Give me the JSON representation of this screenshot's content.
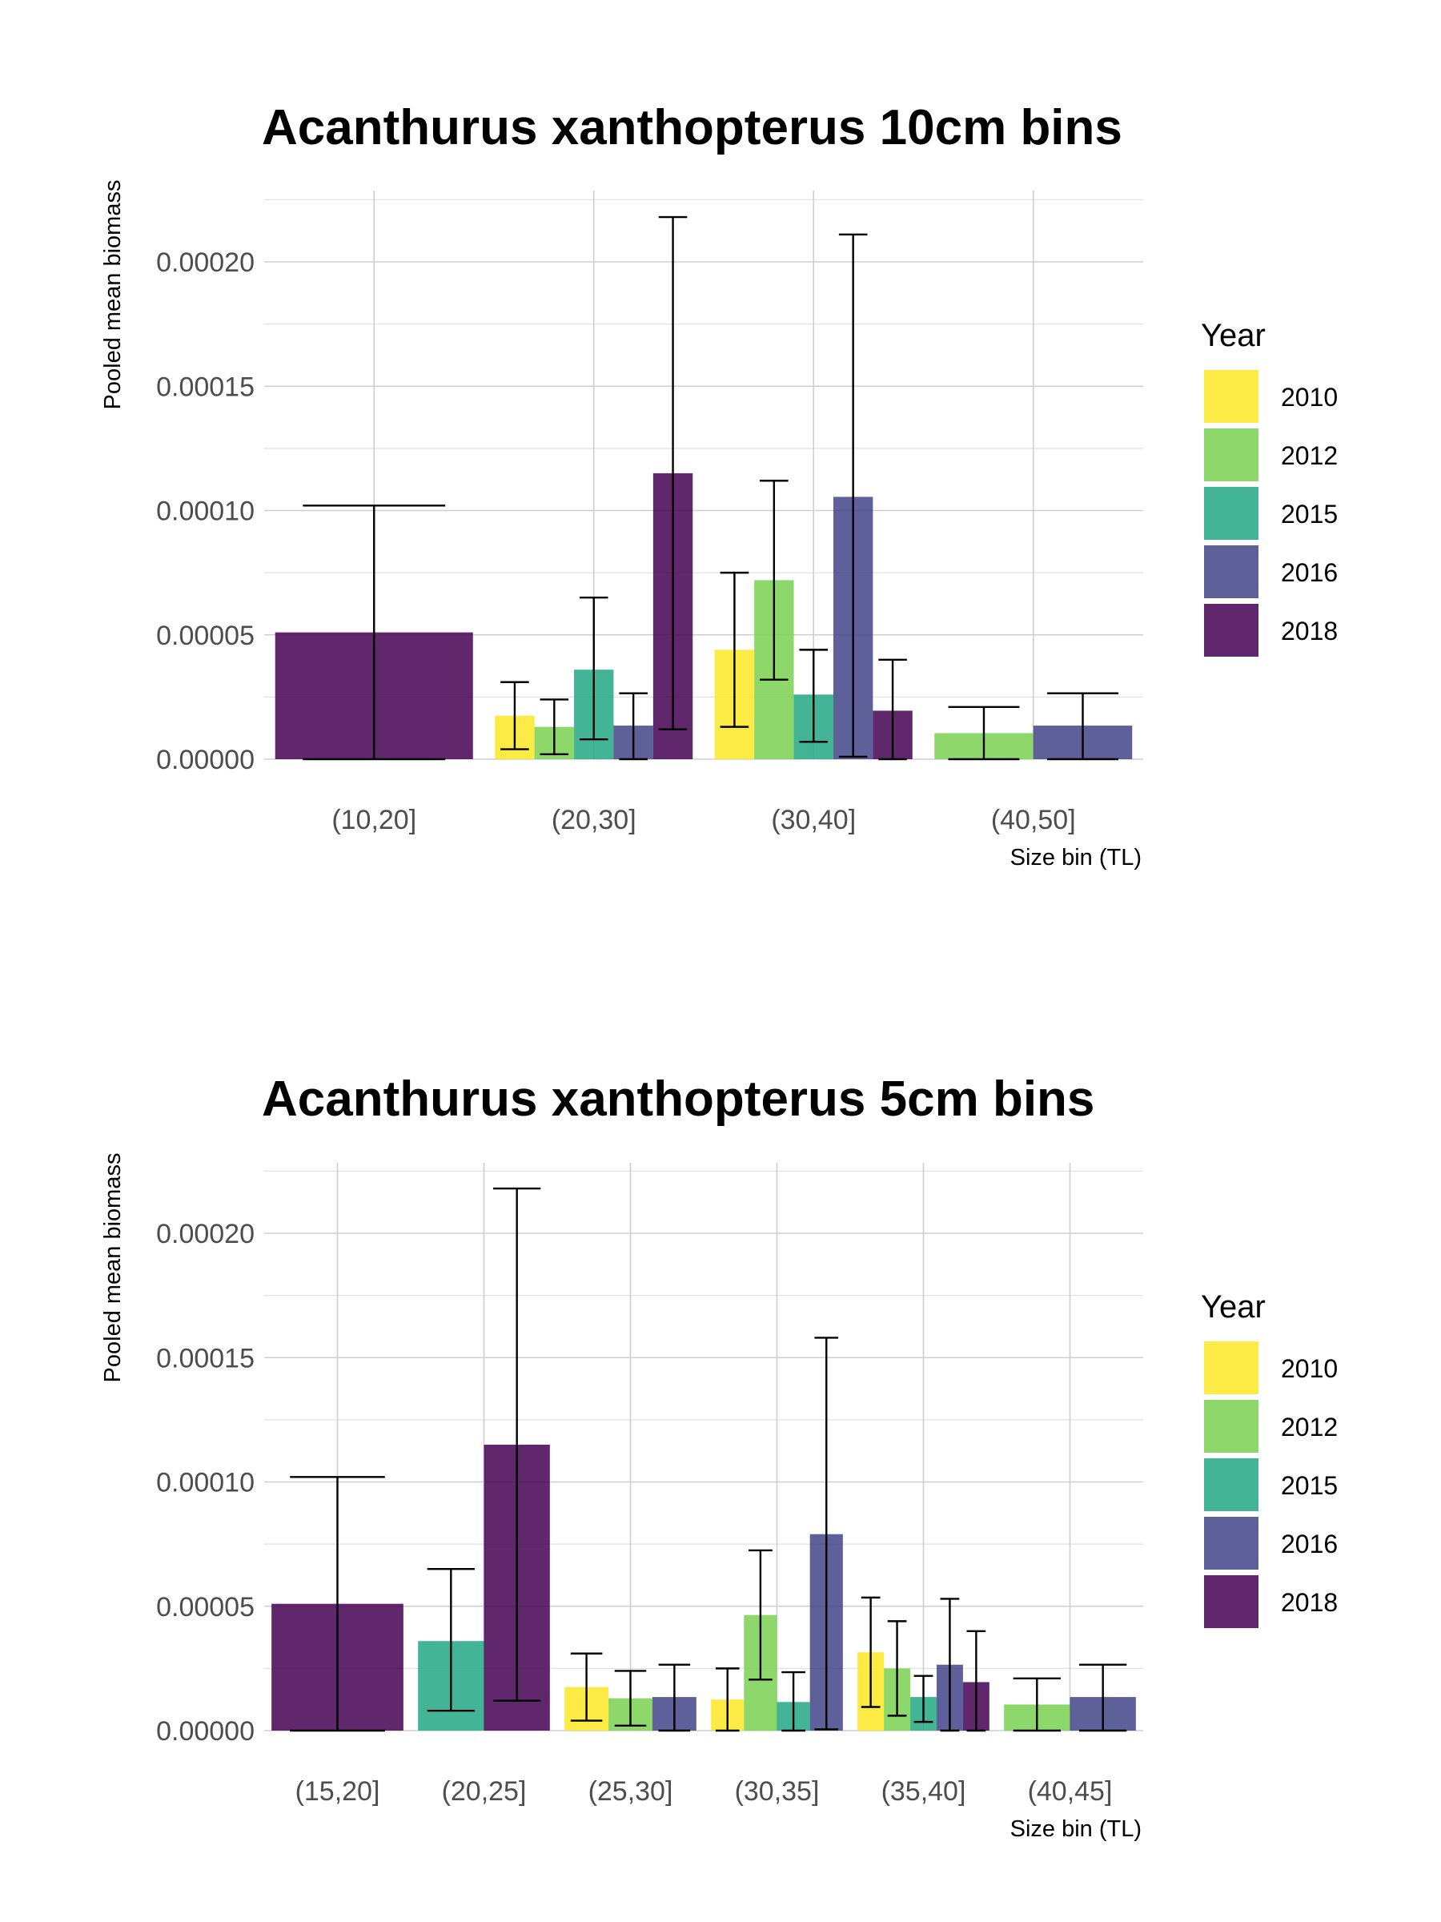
{
  "chart_data": [
    {
      "type": "bar",
      "title": "Acanthurus xanthopterus 10cm bins",
      "xlabel": "Size bin (TL)",
      "ylabel": "Pooled mean biomass",
      "ylim": [
        0,
        0.00023
      ],
      "yticks": [
        "0.00000",
        "0.00005",
        "0.00010",
        "0.00015",
        "0.00020"
      ],
      "ytick_values": [
        0,
        5e-05,
        0.0001,
        0.00015,
        0.0002
      ],
      "categories": [
        "(10,20]",
        "(20,30]",
        "(30,40]",
        "(40,50]"
      ],
      "legend": {
        "title": "Year",
        "position": "right"
      },
      "grid": true,
      "series": [
        {
          "name": "2010",
          "color": "#FDE725",
          "values": [
            null,
            1.75e-05,
            4.4e-05,
            null
          ],
          "err_low": [
            null,
            4e-06,
            1.3e-05,
            null
          ],
          "err_high": [
            null,
            3.1e-05,
            7.5e-05,
            null
          ]
        },
        {
          "name": "2012",
          "color": "#7AD151",
          "values": [
            null,
            1.3e-05,
            7.2e-05,
            1.05e-05
          ],
          "err_low": [
            null,
            2e-06,
            3.2e-05,
            0.0
          ],
          "err_high": [
            null,
            2.4e-05,
            0.000112,
            2.1e-05
          ]
        },
        {
          "name": "2015",
          "color": "#22A884",
          "values": [
            null,
            3.6e-05,
            2.6e-05,
            null
          ],
          "err_low": [
            null,
            8e-06,
            7e-06,
            null
          ],
          "err_high": [
            null,
            6.5e-05,
            4.4e-05,
            null
          ]
        },
        {
          "name": "2016",
          "color": "#414487",
          "values": [
            null,
            1.35e-05,
            0.0001055,
            1.35e-05
          ],
          "err_low": [
            null,
            0.0,
            1e-06,
            0.0
          ],
          "err_high": [
            null,
            2.65e-05,
            0.000211,
            2.65e-05
          ]
        },
        {
          "name": "2018",
          "color": "#440154",
          "values": [
            5.1e-05,
            0.000115,
            1.95e-05,
            null
          ],
          "err_low": [
            0.0,
            1.2e-05,
            0.0,
            null
          ],
          "err_high": [
            0.000102,
            0.000218,
            4e-05,
            null
          ]
        }
      ]
    },
    {
      "type": "bar",
      "title": "Acanthurus xanthopterus 5cm bins",
      "xlabel": "Size bin (TL)",
      "ylabel": "Pooled mean biomass",
      "ylim": [
        0,
        0.00023
      ],
      "yticks": [
        "0.00000",
        "0.00005",
        "0.00010",
        "0.00015",
        "0.00020"
      ],
      "ytick_values": [
        0,
        5e-05,
        0.0001,
        0.00015,
        0.0002
      ],
      "categories": [
        "(15,20]",
        "(20,25]",
        "(25,30]",
        "(30,35]",
        "(35,40]",
        "(40,45]"
      ],
      "legend": {
        "title": "Year",
        "position": "right"
      },
      "grid": true,
      "series": [
        {
          "name": "2010",
          "color": "#FDE725",
          "values": [
            null,
            null,
            1.75e-05,
            1.25e-05,
            3.15e-05,
            null
          ],
          "err_low": [
            null,
            null,
            4e-06,
            0.0,
            9.5e-06,
            null
          ],
          "err_high": [
            null,
            null,
            3.1e-05,
            2.5e-05,
            5.35e-05,
            null
          ]
        },
        {
          "name": "2012",
          "color": "#7AD151",
          "values": [
            null,
            null,
            1.3e-05,
            4.65e-05,
            2.5e-05,
            1.05e-05
          ],
          "err_low": [
            null,
            null,
            2e-06,
            2.05e-05,
            6e-06,
            0.0
          ],
          "err_high": [
            null,
            null,
            2.4e-05,
            7.25e-05,
            4.4e-05,
            2.1e-05
          ]
        },
        {
          "name": "2015",
          "color": "#22A884",
          "values": [
            null,
            3.6e-05,
            null,
            1.15e-05,
            1.35e-05,
            null
          ],
          "err_low": [
            null,
            8e-06,
            null,
            0.0,
            3.5e-06,
            null
          ],
          "err_high": [
            null,
            6.5e-05,
            null,
            2.35e-05,
            2.2e-05,
            null
          ]
        },
        {
          "name": "2016",
          "color": "#414487",
          "values": [
            null,
            null,
            1.35e-05,
            7.9e-05,
            2.65e-05,
            1.35e-05
          ],
          "err_low": [
            null,
            null,
            0.0,
            5e-07,
            0.0,
            0.0
          ],
          "err_high": [
            null,
            null,
            2.65e-05,
            0.000158,
            5.3e-05,
            2.65e-05
          ]
        },
        {
          "name": "2018",
          "color": "#440154",
          "values": [
            5.1e-05,
            0.000115,
            null,
            null,
            1.95e-05,
            null
          ],
          "err_low": [
            0.0,
            1.2e-05,
            null,
            null,
            0.0,
            null
          ],
          "err_high": [
            0.000102,
            0.000218,
            null,
            null,
            4e-05,
            null
          ]
        }
      ]
    }
  ]
}
